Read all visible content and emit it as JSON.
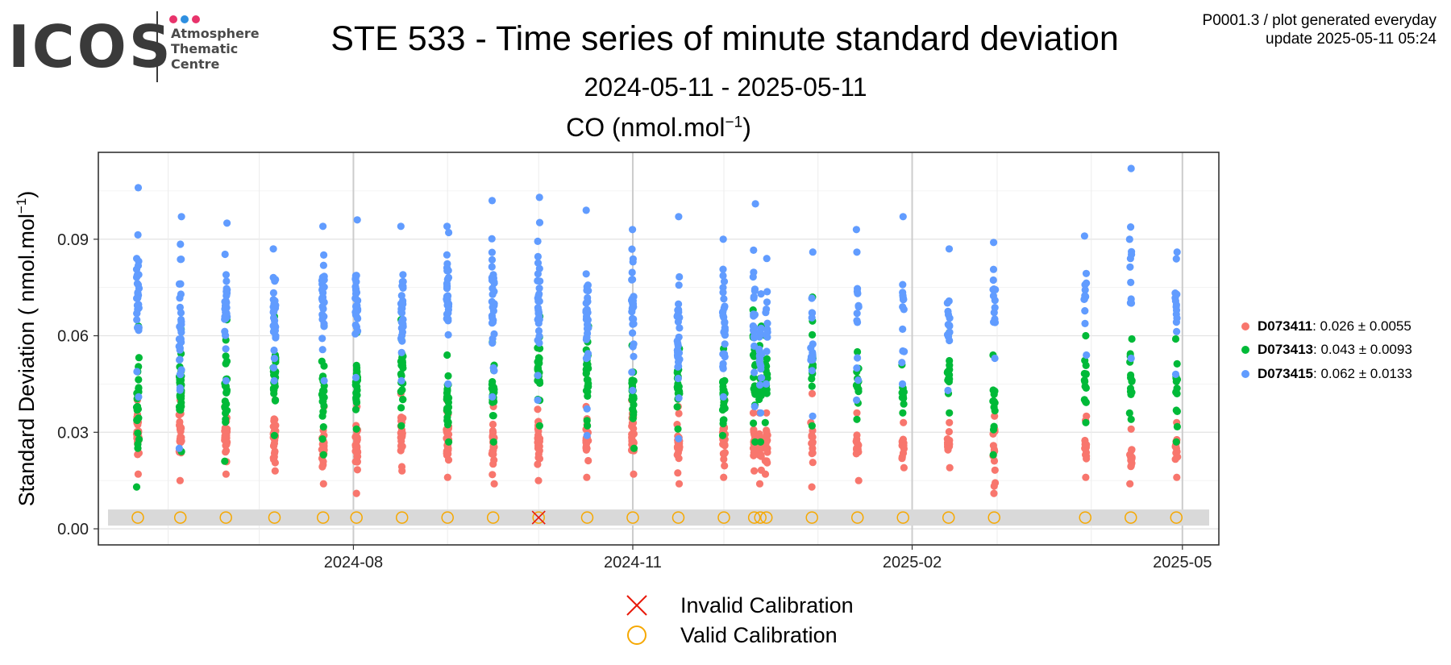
{
  "logo": {
    "main": "ICOS",
    "lines": [
      "Atmosphere",
      "Thematic",
      "Centre"
    ],
    "dot_colors": [
      "#e8336b",
      "#2e8fe0",
      "#e8336b"
    ]
  },
  "meta": {
    "line1": "P0001.3 / plot generated everyday",
    "line2": "update  2025-05-11 05:24"
  },
  "header": {
    "title": "STE 533 - Time series of minute standard deviation",
    "subtitle": "2024-05-11 - 2025-05-11",
    "unit_base": "CO (nmol.mol",
    "unit_exp": "−1",
    "unit_close": ")"
  },
  "legend": {
    "items": [
      {
        "name": "D073411",
        "stats": ": 0.026 ± 0.0055",
        "color": "#f8766d"
      },
      {
        "name": "D073413",
        "stats": ": 0.043 ± 0.0093",
        "color": "#00ba38"
      },
      {
        "name": "D073415",
        "stats": ": 0.062 ± 0.0133",
        "color": "#619cff"
      }
    ]
  },
  "calibration_legend": {
    "invalid": "Invalid Calibration",
    "valid": "Valid Calibration",
    "invalid_color": "#e8190a",
    "valid_color": "#f6a800"
  },
  "chart_data": {
    "type": "scatter",
    "ylabel": "Standard Deviation ( nmol.mol",
    "ylabel_exp": "−1",
    "ylabel_close": ")",
    "ylim": [
      -0.005,
      0.117
    ],
    "xlim": [
      "2024-05-09",
      "2025-05-13"
    ],
    "y_ticks": [
      "0.00",
      "0.03",
      "0.06",
      "0.09"
    ],
    "x_ticks": [
      "2024-08",
      "2024-11",
      "2025-02",
      "2025-05"
    ],
    "grid": true,
    "legend_position": "right",
    "calibration_band": [
      0.001,
      0.006
    ],
    "calibrations": [
      {
        "date": "2024-05-22",
        "valid": true
      },
      {
        "date": "2024-06-05",
        "valid": true
      },
      {
        "date": "2024-06-20",
        "valid": true
      },
      {
        "date": "2024-07-06",
        "valid": true
      },
      {
        "date": "2024-07-22",
        "valid": true
      },
      {
        "date": "2024-08-02",
        "valid": true
      },
      {
        "date": "2024-08-17",
        "valid": true
      },
      {
        "date": "2024-09-01",
        "valid": true
      },
      {
        "date": "2024-09-16",
        "valid": true
      },
      {
        "date": "2024-10-01",
        "valid": false
      },
      {
        "date": "2024-10-17",
        "valid": true
      },
      {
        "date": "2024-11-01",
        "valid": true
      },
      {
        "date": "2024-11-16",
        "valid": true
      },
      {
        "date": "2024-12-01",
        "valid": true
      },
      {
        "date": "2024-12-11",
        "valid": true
      },
      {
        "date": "2024-12-13",
        "valid": true
      },
      {
        "date": "2024-12-15",
        "valid": true
      },
      {
        "date": "2024-12-30",
        "valid": true
      },
      {
        "date": "2025-01-14",
        "valid": true
      },
      {
        "date": "2025-01-29",
        "valid": true
      },
      {
        "date": "2025-02-13",
        "valid": true
      },
      {
        "date": "2025-02-28",
        "valid": true
      },
      {
        "date": "2025-03-30",
        "valid": true
      },
      {
        "date": "2025-04-14",
        "valid": true
      },
      {
        "date": "2025-04-29",
        "valid": true
      }
    ],
    "series": [
      {
        "name": "D073411",
        "color": "#f8766d",
        "columns": [
          {
            "date": "2024-05-22",
            "min": 0.017,
            "max": 0.04,
            "n": 24
          },
          {
            "date": "2024-06-05",
            "min": 0.015,
            "max": 0.04,
            "n": 26
          },
          {
            "date": "2024-06-20",
            "min": 0.017,
            "max": 0.038,
            "n": 24
          },
          {
            "date": "2024-07-06",
            "min": 0.018,
            "max": 0.04,
            "n": 26
          },
          {
            "date": "2024-07-22",
            "min": 0.014,
            "max": 0.038,
            "n": 24
          },
          {
            "date": "2024-08-02",
            "min": 0.011,
            "max": 0.038,
            "n": 26
          },
          {
            "date": "2024-08-17",
            "min": 0.018,
            "max": 0.042,
            "n": 24
          },
          {
            "date": "2024-09-01",
            "min": 0.016,
            "max": 0.04,
            "n": 26
          },
          {
            "date": "2024-09-16",
            "min": 0.014,
            "max": 0.038,
            "n": 24
          },
          {
            "date": "2024-10-01",
            "min": 0.015,
            "max": 0.04,
            "n": 26
          },
          {
            "date": "2024-10-17",
            "min": 0.016,
            "max": 0.038,
            "n": 24
          },
          {
            "date": "2024-11-01",
            "min": 0.017,
            "max": 0.04,
            "n": 26
          },
          {
            "date": "2024-11-16",
            "min": 0.014,
            "max": 0.038,
            "n": 24
          },
          {
            "date": "2024-12-01",
            "min": 0.016,
            "max": 0.04,
            "n": 24
          },
          {
            "date": "2024-12-11",
            "min": 0.018,
            "max": 0.036,
            "n": 16
          },
          {
            "date": "2024-12-13",
            "min": 0.014,
            "max": 0.036,
            "n": 16
          },
          {
            "date": "2024-12-15",
            "min": 0.017,
            "max": 0.036,
            "n": 16
          },
          {
            "date": "2024-12-30",
            "min": 0.013,
            "max": 0.042,
            "n": 14
          },
          {
            "date": "2025-01-14",
            "min": 0.015,
            "max": 0.036,
            "n": 14
          },
          {
            "date": "2025-01-29",
            "min": 0.019,
            "max": 0.033,
            "n": 14
          },
          {
            "date": "2025-02-13",
            "min": 0.019,
            "max": 0.033,
            "n": 14
          },
          {
            "date": "2025-02-28",
            "min": 0.011,
            "max": 0.035,
            "n": 14
          },
          {
            "date": "2025-03-30",
            "min": 0.016,
            "max": 0.035,
            "n": 14
          },
          {
            "date": "2025-04-14",
            "min": 0.014,
            "max": 0.031,
            "n": 14
          },
          {
            "date": "2025-04-29",
            "min": 0.016,
            "max": 0.033,
            "n": 14
          }
        ]
      },
      {
        "name": "D073413",
        "color": "#00ba38",
        "columns": [
          {
            "date": "2024-05-22",
            "min": 0.013,
            "max": 0.063,
            "n": 22
          },
          {
            "date": "2024-06-05",
            "min": 0.024,
            "max": 0.062,
            "n": 26
          },
          {
            "date": "2024-06-20",
            "min": 0.021,
            "max": 0.065,
            "n": 24
          },
          {
            "date": "2024-07-06",
            "min": 0.029,
            "max": 0.066,
            "n": 26
          },
          {
            "date": "2024-07-22",
            "min": 0.023,
            "max": 0.063,
            "n": 24
          },
          {
            "date": "2024-08-02",
            "min": 0.031,
            "max": 0.061,
            "n": 24
          },
          {
            "date": "2024-08-17",
            "min": 0.032,
            "max": 0.065,
            "n": 24
          },
          {
            "date": "2024-09-01",
            "min": 0.027,
            "max": 0.054,
            "n": 24
          },
          {
            "date": "2024-09-16",
            "min": 0.027,
            "max": 0.058,
            "n": 24
          },
          {
            "date": "2024-10-01",
            "min": 0.032,
            "max": 0.066,
            "n": 26
          },
          {
            "date": "2024-10-17",
            "min": 0.032,
            "max": 0.063,
            "n": 24
          },
          {
            "date": "2024-11-01",
            "min": 0.025,
            "max": 0.057,
            "n": 24
          },
          {
            "date": "2024-11-16",
            "min": 0.031,
            "max": 0.056,
            "n": 22
          },
          {
            "date": "2024-12-01",
            "min": 0.029,
            "max": 0.056,
            "n": 24
          },
          {
            "date": "2024-12-11",
            "min": 0.027,
            "max": 0.068,
            "n": 18
          },
          {
            "date": "2024-12-13",
            "min": 0.027,
            "max": 0.063,
            "n": 16
          },
          {
            "date": "2024-12-15",
            "min": 0.033,
            "max": 0.06,
            "n": 16
          },
          {
            "date": "2024-12-30",
            "min": 0.032,
            "max": 0.072,
            "n": 14
          },
          {
            "date": "2025-01-14",
            "min": 0.034,
            "max": 0.055,
            "n": 12
          },
          {
            "date": "2025-01-29",
            "min": 0.036,
            "max": 0.051,
            "n": 12
          },
          {
            "date": "2025-02-13",
            "min": 0.036,
            "max": 0.061,
            "n": 14
          },
          {
            "date": "2025-02-28",
            "min": 0.023,
            "max": 0.054,
            "n": 14
          },
          {
            "date": "2025-03-30",
            "min": 0.033,
            "max": 0.06,
            "n": 14
          },
          {
            "date": "2025-04-14",
            "min": 0.034,
            "max": 0.059,
            "n": 14
          },
          {
            "date": "2025-04-29",
            "min": 0.027,
            "max": 0.059,
            "n": 14
          }
        ]
      },
      {
        "name": "D073415",
        "color": "#619cff",
        "columns": [
          {
            "date": "2024-05-22",
            "min": 0.041,
            "max": 0.106,
            "n": 34
          },
          {
            "date": "2024-06-05",
            "min": 0.025,
            "max": 0.097,
            "n": 32
          },
          {
            "date": "2024-06-20",
            "min": 0.046,
            "max": 0.095,
            "n": 32
          },
          {
            "date": "2024-07-06",
            "min": 0.046,
            "max": 0.087,
            "n": 32
          },
          {
            "date": "2024-07-22",
            "min": 0.046,
            "max": 0.094,
            "n": 32
          },
          {
            "date": "2024-08-02",
            "min": 0.047,
            "max": 0.096,
            "n": 32
          },
          {
            "date": "2024-08-17",
            "min": 0.046,
            "max": 0.094,
            "n": 32
          },
          {
            "date": "2024-09-01",
            "min": 0.045,
            "max": 0.094,
            "n": 32
          },
          {
            "date": "2024-09-16",
            "min": 0.041,
            "max": 0.102,
            "n": 32
          },
          {
            "date": "2024-10-01",
            "min": 0.04,
            "max": 0.103,
            "n": 32
          },
          {
            "date": "2024-10-17",
            "min": 0.029,
            "max": 0.099,
            "n": 32
          },
          {
            "date": "2024-11-01",
            "min": 0.043,
            "max": 0.093,
            "n": 30
          },
          {
            "date": "2024-11-16",
            "min": 0.028,
            "max": 0.097,
            "n": 32
          },
          {
            "date": "2024-12-01",
            "min": 0.041,
            "max": 0.09,
            "n": 30
          },
          {
            "date": "2024-12-11",
            "min": 0.038,
            "max": 0.101,
            "n": 22
          },
          {
            "date": "2024-12-13",
            "min": 0.036,
            "max": 0.073,
            "n": 18
          },
          {
            "date": "2024-12-15",
            "min": 0.045,
            "max": 0.084,
            "n": 12
          },
          {
            "date": "2024-12-30",
            "min": 0.035,
            "max": 0.086,
            "n": 16
          },
          {
            "date": "2025-01-14",
            "min": 0.04,
            "max": 0.093,
            "n": 14
          },
          {
            "date": "2025-01-29",
            "min": 0.045,
            "max": 0.097,
            "n": 14
          },
          {
            "date": "2025-02-13",
            "min": 0.043,
            "max": 0.087,
            "n": 14
          },
          {
            "date": "2025-02-28",
            "min": 0.053,
            "max": 0.089,
            "n": 14
          },
          {
            "date": "2025-03-30",
            "min": 0.054,
            "max": 0.091,
            "n": 12
          },
          {
            "date": "2025-04-14",
            "min": 0.053,
            "max": 0.112,
            "n": 12
          },
          {
            "date": "2025-04-29",
            "min": 0.048,
            "max": 0.086,
            "n": 14
          }
        ]
      }
    ]
  }
}
